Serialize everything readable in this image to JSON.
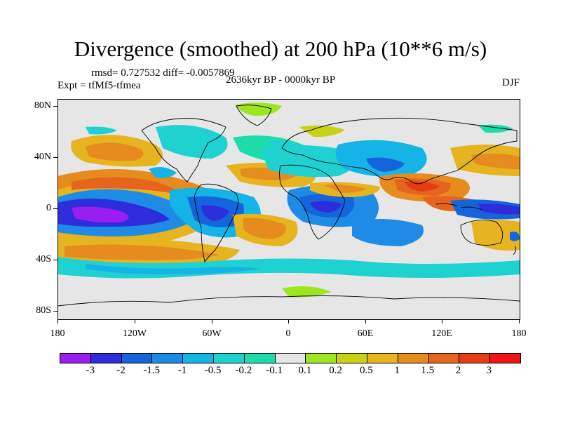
{
  "title": "Divergence (smoothed) at 200 hPa (10**6 m/s)",
  "stats": "rmsd= 0.727532 diff= -0.0057869",
  "expt": "Expt = tfMf5-tfmea",
  "period": "2636kyr BP - 0000kyr BP",
  "season": "DJF",
  "y_axis": [
    "80N",
    "40N",
    "0",
    "40S",
    "80S"
  ],
  "x_axis": [
    "180",
    "120W",
    "60W",
    "0",
    "60E",
    "120E",
    "180"
  ],
  "colorbar": {
    "colors": [
      "#9a1ef0",
      "#2d2ddc",
      "#1464dc",
      "#1e8ce6",
      "#14b4e6",
      "#1ed2d2",
      "#1edcaa",
      "#e6e6e6",
      "#9be61e",
      "#c8d214",
      "#e6b41e",
      "#e68c1e",
      "#e6641e",
      "#e63c14",
      "#f01414"
    ],
    "labels": [
      "-3",
      "-2",
      "-1.5",
      "-1",
      "-0.5",
      "-0.2",
      "-0.1",
      "0.1",
      "0.2",
      "0.5",
      "1",
      "1.5",
      "2",
      "3"
    ]
  }
}
